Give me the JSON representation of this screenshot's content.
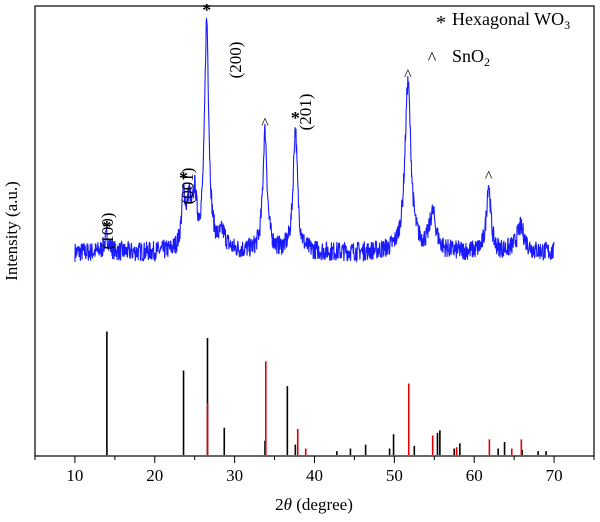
{
  "chart_data": {
    "type": "line",
    "xlabel": "2θ (degree)",
    "ylabel": "Intensity (a.u.)",
    "xlim": [
      5,
      75
    ],
    "xticks": [
      "10",
      "20",
      "30",
      "40",
      "50",
      "60",
      "70"
    ],
    "legend": [
      {
        "marker": "*",
        "label": "Hexagonal WO3",
        "color": "#000000"
      },
      {
        "marker": "^",
        "label": "SnO2",
        "color": "#e00000"
      }
    ],
    "series": [
      {
        "style": "noisy-line",
        "color": "#1a1aff",
        "x_range": [
          10,
          70
        ],
        "baseline": 0.245,
        "noise": 0.032,
        "peaks": [
          {
            "x": 14.0,
            "h": 0.05,
            "w": 0.35
          },
          {
            "x": 23.6,
            "h": 0.17,
            "w": 0.3
          },
          {
            "x": 24.3,
            "h": 0.14,
            "w": 0.3
          },
          {
            "x": 25.0,
            "h": 0.16,
            "w": 0.3
          },
          {
            "x": 26.5,
            "h": 0.74,
            "w": 0.32
          },
          {
            "x": 28.5,
            "h": 0.05,
            "w": 0.5
          },
          {
            "x": 33.8,
            "h": 0.39,
            "w": 0.32
          },
          {
            "x": 37.6,
            "h": 0.4,
            "w": 0.32
          },
          {
            "x": 51.7,
            "h": 0.55,
            "w": 0.45
          },
          {
            "x": 54.8,
            "h": 0.12,
            "w": 0.5
          },
          {
            "x": 61.8,
            "h": 0.22,
            "w": 0.32
          },
          {
            "x": 65.8,
            "h": 0.08,
            "w": 0.6
          }
        ]
      }
    ],
    "reference_lines": {
      "wo3": {
        "color": "#000000",
        "x": [
          14.0,
          23.6,
          26.6,
          28.7,
          33.8,
          36.6,
          37.6,
          42.8,
          44.5,
          46.4,
          49.4,
          49.9,
          52.5,
          55.4,
          55.7,
          57.5,
          58.2,
          63.0,
          63.8,
          66.0,
          68.0,
          69.0
        ],
        "h": [
          0.95,
          0.65,
          0.9,
          0.21,
          0.11,
          0.53,
          0.08,
          0.03,
          0.05,
          0.08,
          0.05,
          0.16,
          0.07,
          0.17,
          0.19,
          0.05,
          0.09,
          0.05,
          0.1,
          0.04,
          0.03,
          0.03
        ]
      },
      "sno2": {
        "color": "#e00000",
        "x": [
          26.6,
          33.9,
          37.9,
          38.9,
          51.8,
          54.8,
          57.8,
          61.9,
          64.7,
          65.9
        ],
        "h": [
          0.4,
          0.72,
          0.2,
          0.05,
          0.55,
          0.15,
          0.06,
          0.12,
          0.05,
          0.12
        ]
      }
    },
    "annotations": {
      "wo3_markers": [
        {
          "x": 14.0,
          "text": "*"
        },
        {
          "x": 23.6,
          "text": "*"
        },
        {
          "x": 26.5,
          "text": "*"
        },
        {
          "x": 37.6,
          "text": "*"
        }
      ],
      "sno2_markers": [
        {
          "x": 33.8,
          "text": "^"
        },
        {
          "x": 51.7,
          "text": "^"
        },
        {
          "x": 61.8,
          "text": "^"
        }
      ],
      "miller": [
        {
          "x": 14.0,
          "text": "(100)"
        },
        {
          "x": 23.8,
          "text": "(001)"
        },
        {
          "x": 30.5,
          "text": "(200)"
        },
        {
          "x": 38.5,
          "text": "(201)"
        }
      ]
    }
  }
}
